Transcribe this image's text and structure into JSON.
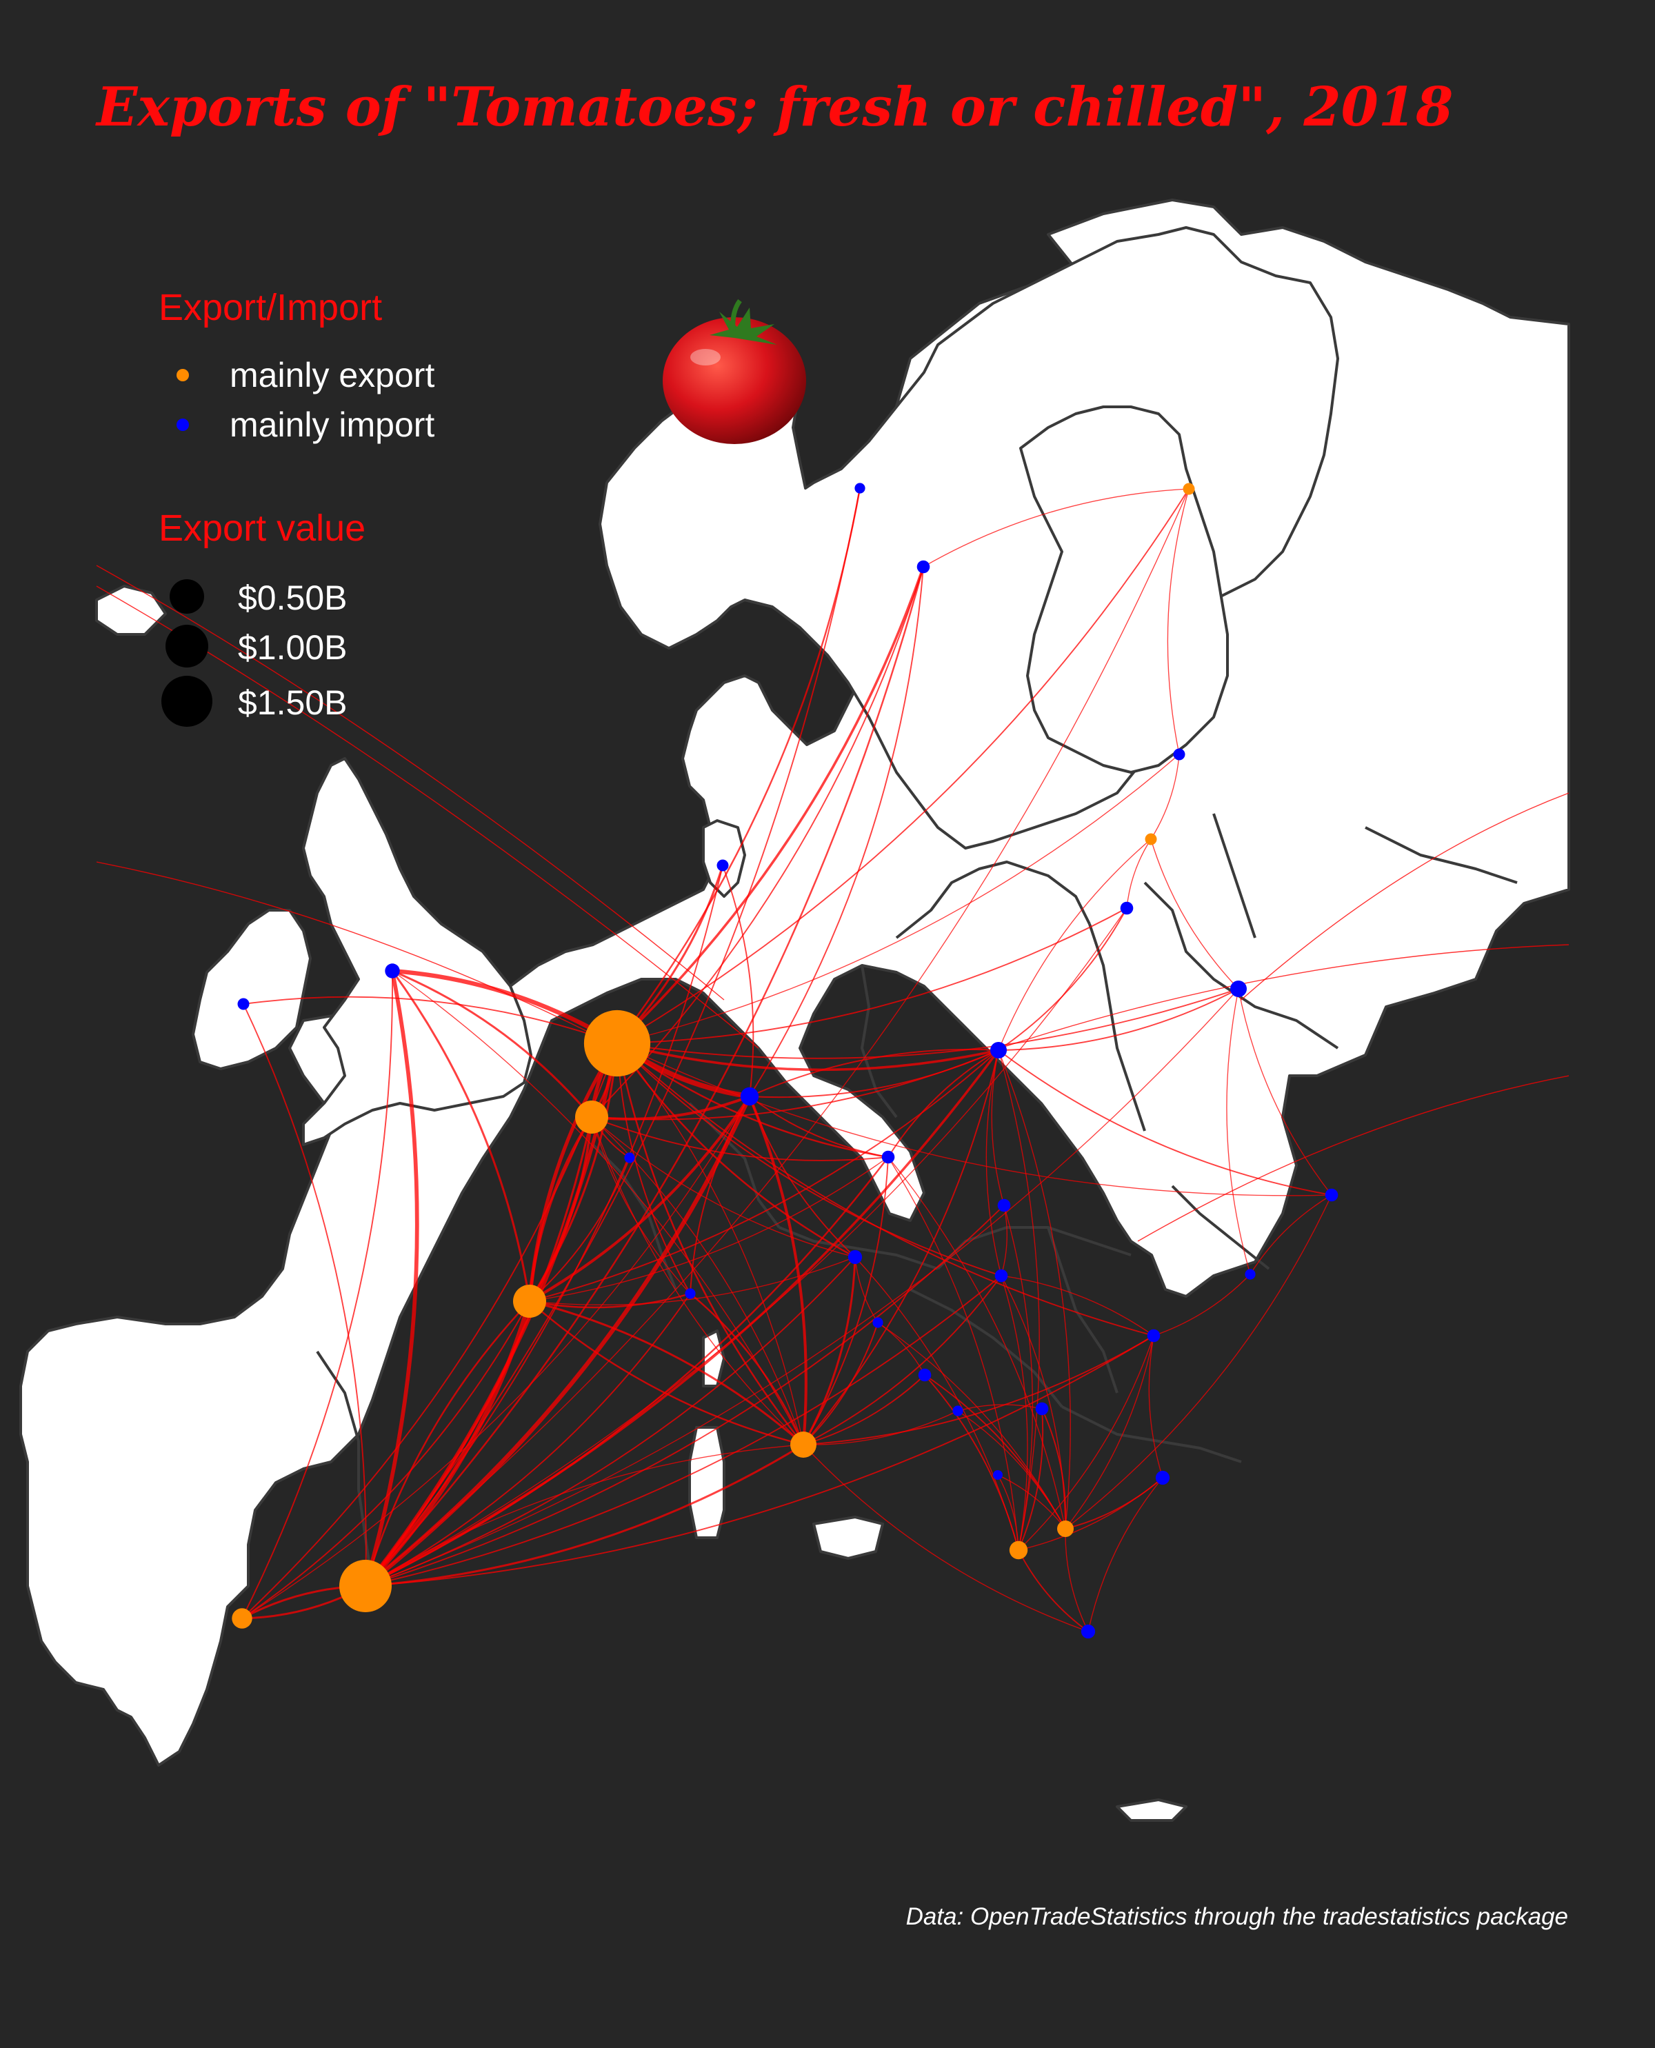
{
  "title": "Exports of \"Tomatoes; fresh or chilled\", 2018",
  "legend": {
    "color_title": "Export/Import",
    "color_items": [
      {
        "label": "mainly export",
        "color": "#ff8c00"
      },
      {
        "label": "mainly import",
        "color": "#0000ff"
      }
    ],
    "size_title": "Export value",
    "size_items": [
      "$0.50B",
      "$1.00B",
      "$1.50B"
    ]
  },
  "caption": "Data: OpenTradeStatistics through the tradestatistics package",
  "colors": {
    "background": "#262626",
    "land": "#ffffff",
    "borders": "#3a3a3a",
    "flow": "#ff0000",
    "export": "#ff8c00",
    "import": "#0000ff",
    "title": "#ff0a0a"
  },
  "icons": {
    "tomato": "tomato-icon"
  },
  "chart_data": {
    "type": "map",
    "region": "Europe",
    "nodes": [
      {
        "id": "NL",
        "type": "export",
        "value": 1.6
      },
      {
        "id": "ES",
        "type": "export",
        "value": 1.0
      },
      {
        "id": "BE",
        "type": "export",
        "value": 0.4
      },
      {
        "id": "FR",
        "type": "export",
        "value": 0.4
      },
      {
        "id": "IT",
        "type": "export",
        "value": 0.25
      },
      {
        "id": "PT",
        "type": "export",
        "value": 0.15
      },
      {
        "id": "AL",
        "type": "export",
        "value": 0.12
      },
      {
        "id": "MK",
        "type": "export",
        "value": 0.1
      },
      {
        "id": "FI",
        "type": "export",
        "value": 0.05
      },
      {
        "id": "LV",
        "type": "export",
        "value": 0.05
      },
      {
        "id": "DE",
        "type": "import",
        "value": 0.12
      },
      {
        "id": "PL",
        "type": "import",
        "value": 0.1
      },
      {
        "id": "BY",
        "type": "import",
        "value": 0.1
      },
      {
        "id": "GB",
        "type": "import",
        "value": 0.08
      },
      {
        "id": "IE",
        "type": "import",
        "value": 0.05
      },
      {
        "id": "SE",
        "type": "import",
        "value": 0.06
      },
      {
        "id": "NO",
        "type": "import",
        "value": 0.04
      },
      {
        "id": "DK",
        "type": "import",
        "value": 0.05
      },
      {
        "id": "LU",
        "type": "import",
        "value": 0.04
      },
      {
        "id": "CZ",
        "type": "import",
        "value": 0.06
      },
      {
        "id": "SK",
        "type": "import",
        "value": 0.06
      },
      {
        "id": "AT",
        "type": "import",
        "value": 0.07
      },
      {
        "id": "HU",
        "type": "import",
        "value": 0.06
      },
      {
        "id": "CH",
        "type": "import",
        "value": 0.04
      },
      {
        "id": "SI",
        "type": "import",
        "value": 0.04
      },
      {
        "id": "HR",
        "type": "import",
        "value": 0.06
      },
      {
        "id": "BA",
        "type": "import",
        "value": 0.04
      },
      {
        "id": "RS",
        "type": "import",
        "value": 0.06
      },
      {
        "id": "RO",
        "type": "import",
        "value": 0.06
      },
      {
        "id": "BG",
        "type": "import",
        "value": 0.07
      },
      {
        "id": "GR",
        "type": "import",
        "value": 0.07
      },
      {
        "id": "UA",
        "type": "import",
        "value": 0.06
      },
      {
        "id": "MD",
        "type": "import",
        "value": 0.04
      },
      {
        "id": "LT",
        "type": "import",
        "value": 0.06
      },
      {
        "id": "EE",
        "type": "import",
        "value": 0.05
      },
      {
        "id": "ME",
        "type": "import",
        "value": 0.03
      }
    ],
    "flows": [
      [
        "NL",
        "GB",
        1.0
      ],
      [
        "NL",
        "DE",
        1.2
      ],
      [
        "NL",
        "BE",
        0.8
      ],
      [
        "NL",
        "FR",
        0.8
      ],
      [
        "NL",
        "SE",
        0.5
      ],
      [
        "NL",
        "NO",
        0.3
      ],
      [
        "NL",
        "PL",
        0.5
      ],
      [
        "NL",
        "DK",
        0.4
      ],
      [
        "NL",
        "CZ",
        0.3
      ],
      [
        "NL",
        "FI",
        0.2
      ],
      [
        "NL",
        "LT",
        0.2
      ],
      [
        "NL",
        "IE",
        0.2
      ],
      [
        "NL",
        "AT",
        0.3
      ],
      [
        "NL",
        "HU",
        0.2
      ],
      [
        "NL",
        "BY",
        0.2
      ],
      [
        "NL",
        "RO",
        0.2
      ],
      [
        "NL",
        "CH",
        0.2
      ],
      [
        "NL",
        "IT",
        0.3
      ],
      [
        "NL",
        "EE",
        0.1
      ],
      [
        "NL",
        "UA",
        0.1
      ],
      [
        "ES",
        "FR",
        1.0
      ],
      [
        "ES",
        "DE",
        1.0
      ],
      [
        "ES",
        "GB",
        0.9
      ],
      [
        "ES",
        "NL",
        0.8
      ],
      [
        "ES",
        "PL",
        0.5
      ],
      [
        "ES",
        "PT",
        0.4
      ],
      [
        "ES",
        "IT",
        0.4
      ],
      [
        "ES",
        "BE",
        0.4
      ],
      [
        "ES",
        "SE",
        0.3
      ],
      [
        "ES",
        "CZ",
        0.3
      ],
      [
        "ES",
        "AT",
        0.2
      ],
      [
        "ES",
        "CH",
        0.2
      ],
      [
        "ES",
        "IE",
        0.2
      ],
      [
        "ES",
        "HU",
        0.2
      ],
      [
        "ES",
        "SK",
        0.2
      ],
      [
        "ES",
        "RO",
        0.2
      ],
      [
        "ES",
        "DK",
        0.2
      ],
      [
        "ES",
        "NO",
        0.2
      ],
      [
        "ES",
        "FI",
        0.1
      ],
      [
        "ES",
        "LT",
        0.1
      ],
      [
        "ES",
        "BY",
        0.1
      ],
      [
        "BE",
        "FR",
        0.6
      ],
      [
        "BE",
        "DE",
        0.6
      ],
      [
        "BE",
        "GB",
        0.4
      ],
      [
        "BE",
        "NL",
        0.4
      ],
      [
        "BE",
        "CZ",
        0.2
      ],
      [
        "BE",
        "PL",
        0.2
      ],
      [
        "BE",
        "SE",
        0.2
      ],
      [
        "BE",
        "LU",
        0.2
      ],
      [
        "BE",
        "AT",
        0.1
      ],
      [
        "BE",
        "IT",
        0.1
      ],
      [
        "BE",
        "CH",
        0.1
      ],
      [
        "FR",
        "DE",
        0.6
      ],
      [
        "FR",
        "BE",
        0.5
      ],
      [
        "FR",
        "GB",
        0.4
      ],
      [
        "FR",
        "NL",
        0.4
      ],
      [
        "FR",
        "IT",
        0.3
      ],
      [
        "FR",
        "ES",
        0.3
      ],
      [
        "FR",
        "CH",
        0.3
      ],
      [
        "FR",
        "LU",
        0.2
      ],
      [
        "FR",
        "PL",
        0.2
      ],
      [
        "FR",
        "CZ",
        0.1
      ],
      [
        "FR",
        "AT",
        0.1
      ],
      [
        "IT",
        "DE",
        0.6
      ],
      [
        "IT",
        "AT",
        0.4
      ],
      [
        "IT",
        "FR",
        0.4
      ],
      [
        "IT",
        "CH",
        0.3
      ],
      [
        "IT",
        "SI",
        0.2
      ],
      [
        "IT",
        "HR",
        0.2
      ],
      [
        "IT",
        "PL",
        0.2
      ],
      [
        "IT",
        "CZ",
        0.2
      ],
      [
        "IT",
        "HU",
        0.2
      ],
      [
        "IT",
        "RO",
        0.2
      ],
      [
        "IT",
        "GR",
        0.1
      ],
      [
        "IT",
        "BA",
        0.1
      ],
      [
        "IT",
        "ES",
        0.1
      ],
      [
        "IT",
        "NL",
        0.1
      ],
      [
        "IT",
        "BE",
        0.1
      ],
      [
        "IT",
        "GB",
        0.1
      ],
      [
        "PT",
        "ES",
        0.4
      ],
      [
        "PT",
        "FR",
        0.2
      ],
      [
        "PT",
        "GB",
        0.2
      ],
      [
        "PT",
        "NL",
        0.2
      ],
      [
        "PT",
        "DE",
        0.1
      ],
      [
        "AL",
        "GR",
        0.2
      ],
      [
        "AL",
        "RS",
        0.2
      ],
      [
        "AL",
        "HR",
        0.2
      ],
      [
        "AL",
        "BG",
        0.1
      ],
      [
        "AL",
        "RO",
        0.1
      ],
      [
        "AL",
        "ME",
        0.1
      ],
      [
        "AL",
        "PL",
        0.1
      ],
      [
        "AL",
        "SK",
        0.1
      ],
      [
        "AL",
        "CZ",
        0.1
      ],
      [
        "AL",
        "HU",
        0.1
      ],
      [
        "AL",
        "AT",
        0.1
      ],
      [
        "MK",
        "RS",
        0.2
      ],
      [
        "MK",
        "BG",
        0.2
      ],
      [
        "MK",
        "HR",
        0.2
      ],
      [
        "MK",
        "RO",
        0.1
      ],
      [
        "MK",
        "GR",
        0.1
      ],
      [
        "MK",
        "BA",
        0.1
      ],
      [
        "MK",
        "SI",
        0.1
      ],
      [
        "MK",
        "PL",
        0.1
      ],
      [
        "MK",
        "CZ",
        0.1
      ],
      [
        "MK",
        "HU",
        0.1
      ],
      [
        "MK",
        "ME",
        0.1
      ],
      [
        "MK",
        "UA",
        0.1
      ],
      [
        "FI",
        "SE",
        0.1
      ],
      [
        "FI",
        "EE",
        0.1
      ],
      [
        "LV",
        "LT",
        0.1
      ],
      [
        "LV",
        "EE",
        0.1
      ],
      [
        "LV",
        "BY",
        0.1
      ],
      [
        "LV",
        "PL",
        0.1
      ],
      [
        "PL",
        "LT",
        0.2
      ],
      [
        "PL",
        "BY",
        0.2
      ],
      [
        "PL",
        "UA",
        0.2
      ],
      [
        "PL",
        "CZ",
        0.2
      ],
      [
        "PL",
        "DE",
        0.2
      ],
      [
        "PL",
        "SK",
        0.1
      ],
      [
        "PL",
        "HU",
        0.1
      ],
      [
        "DE",
        "AT",
        0.2
      ],
      [
        "DE",
        "CZ",
        0.2
      ],
      [
        "DE",
        "DK",
        0.2
      ],
      [
        "DE",
        "SE",
        0.2
      ],
      [
        "DE",
        "CH",
        0.2
      ],
      [
        "DE",
        "PL",
        0.2
      ],
      [
        "BY",
        "UA",
        0.1
      ],
      [
        "BY",
        "MD",
        0.1
      ],
      [
        "UA",
        "MD",
        0.1
      ],
      [
        "RO",
        "MD",
        0.1
      ],
      [
        "RO",
        "HU",
        0.1
      ],
      [
        "RO",
        "BG",
        0.1
      ],
      [
        "BG",
        "GR",
        0.1
      ],
      [
        "RS",
        "BA",
        0.1
      ],
      [
        "HR",
        "SI",
        0.1
      ],
      [
        "HU",
        "SK",
        0.1
      ],
      [
        "AT",
        "SI",
        0.1
      ]
    ]
  }
}
